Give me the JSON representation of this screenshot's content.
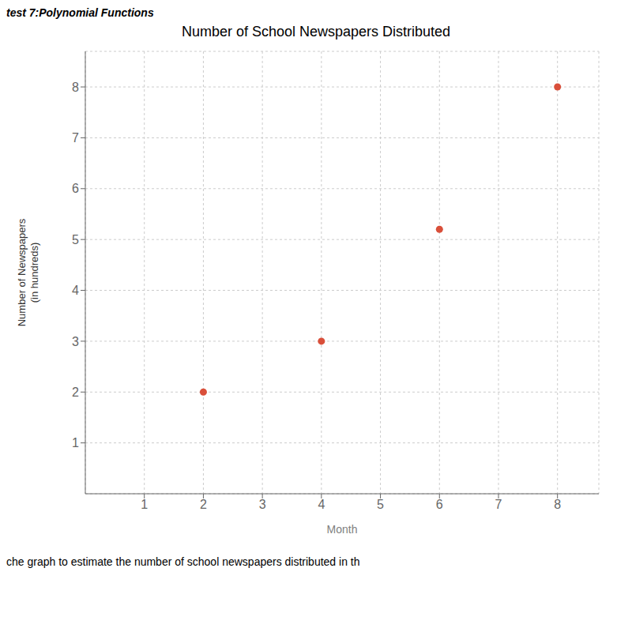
{
  "chart_data": {
    "type": "scatter",
    "title": "Number of School Newspapers Distributed",
    "xlabel": "Month",
    "ylabel": "Number of Newspapers\n(in hundreds)",
    "annotations": [
      "test 7:Polynomial Functions",
      "che graph to estimate the number of school newspapers distributed in th"
    ],
    "x": [
      2,
      4,
      6,
      8
    ],
    "values": [
      2,
      3,
      5.2,
      8
    ],
    "color": "#d94f3a",
    "xlim": [
      0,
      8.7
    ],
    "ylim": [
      0,
      8.7
    ],
    "xticks": [
      1,
      2,
      3,
      4,
      5,
      6,
      7,
      8
    ],
    "yticks": [
      1,
      2,
      3,
      4,
      5,
      6,
      7,
      8
    ],
    "grid": true
  }
}
